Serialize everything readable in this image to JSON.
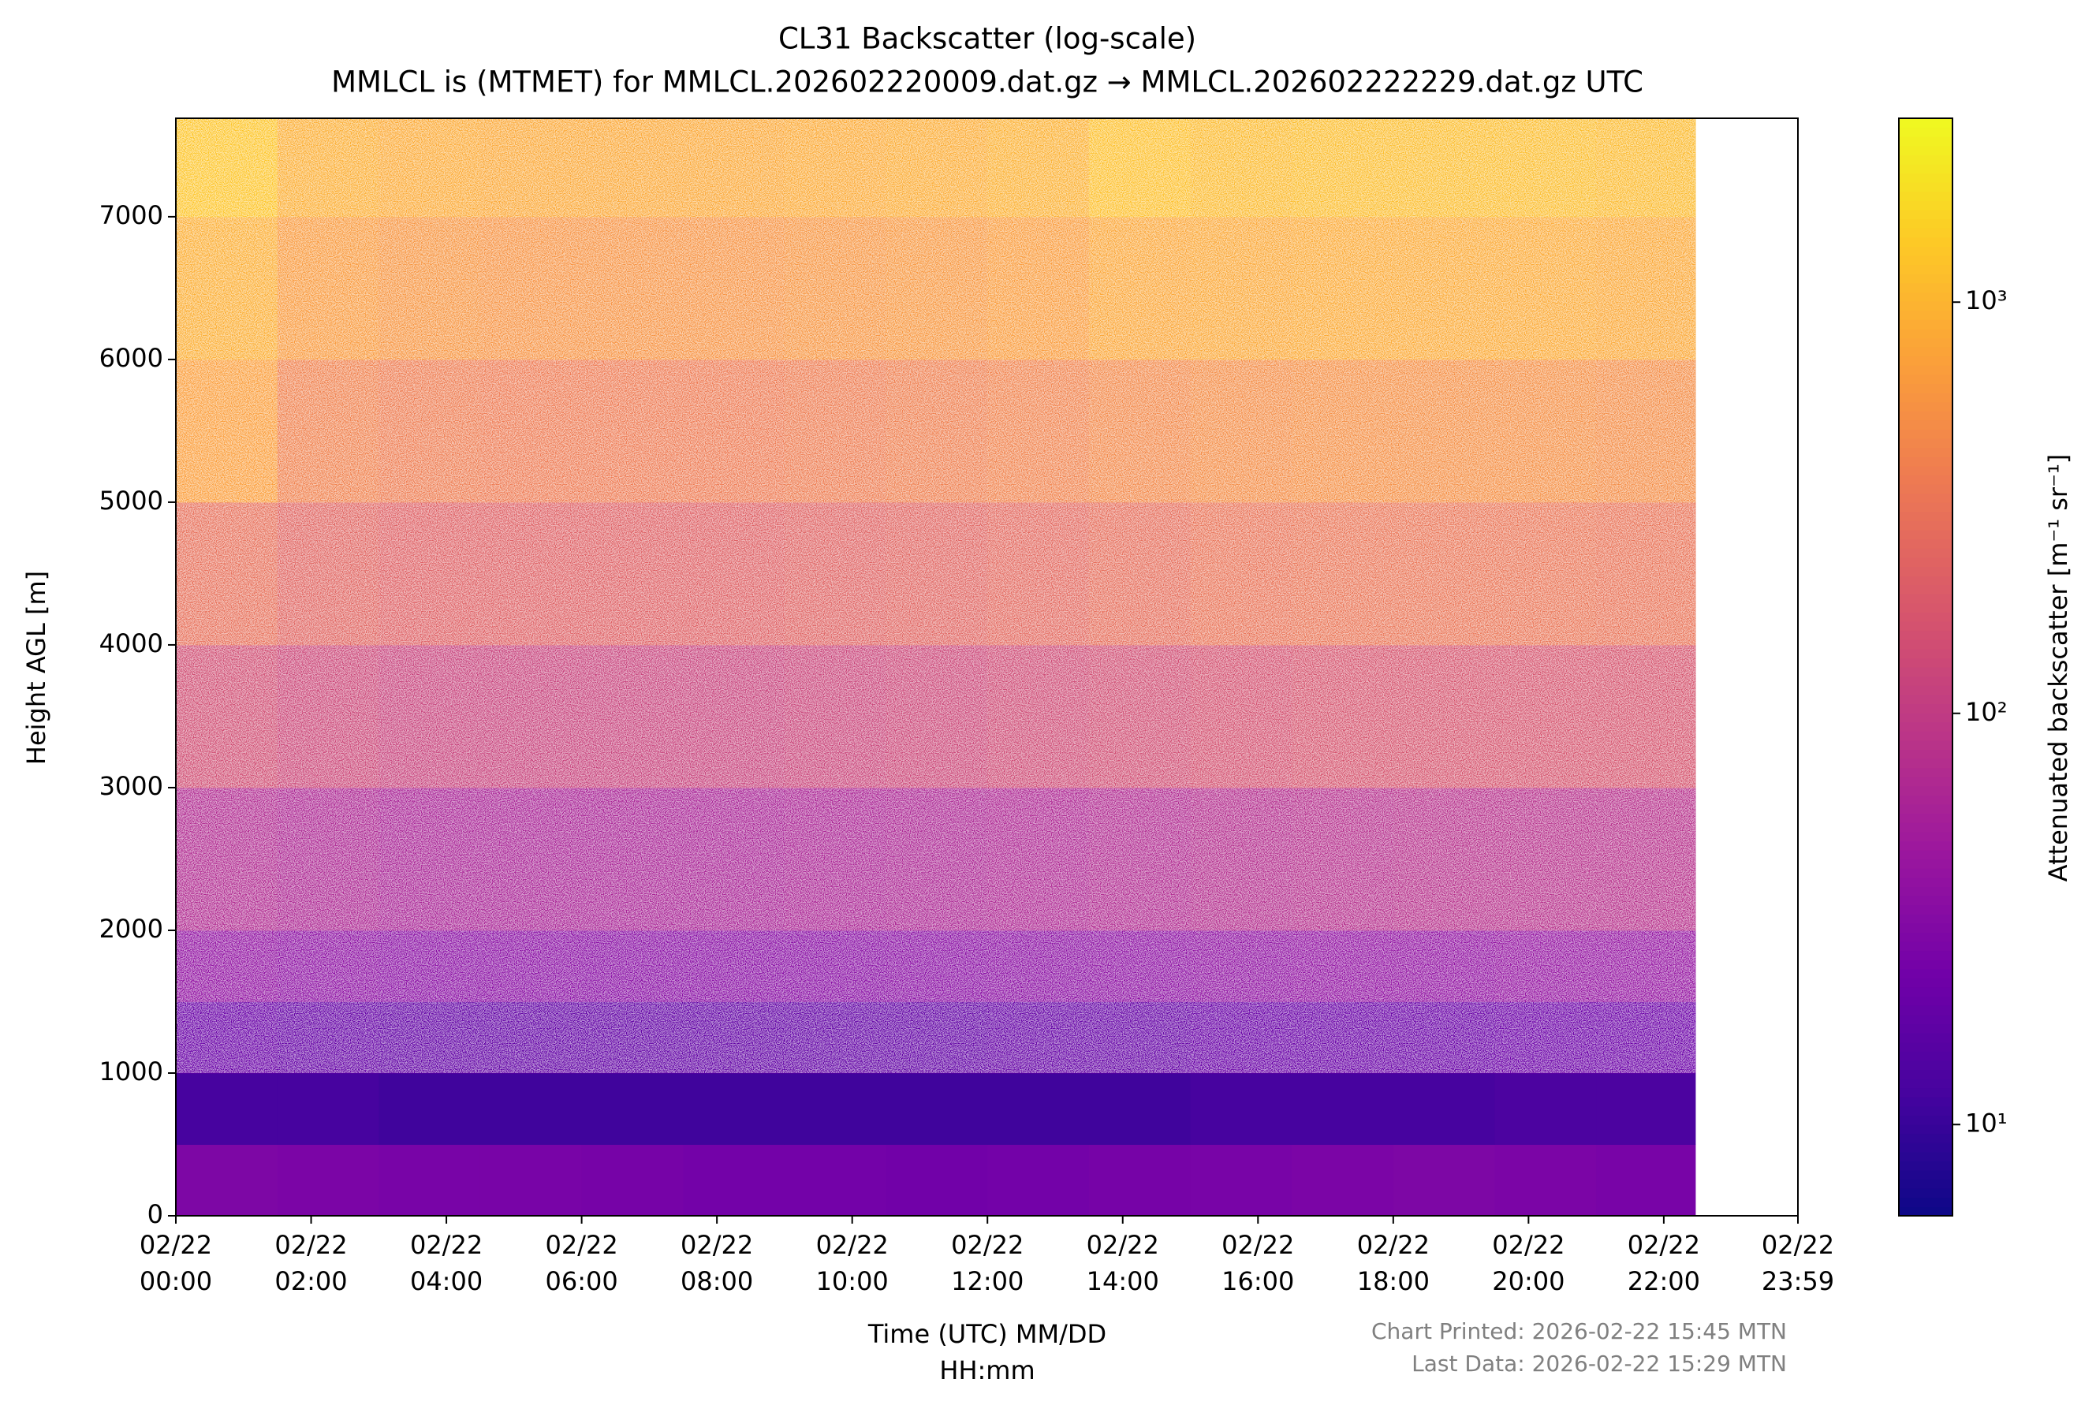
{
  "chart_data": {
    "type": "heatmap",
    "title": "CL31 Backscatter (log-scale)",
    "subtitle": "MMLCL is (MTMET) for MMLCL.202602220009.dat.gz → MMLCL.202602222229.dat.gz UTC",
    "x_label": "Time (UTC) MM/DD\nHH:mm",
    "y_label": "Height AGL [m]",
    "colorbar_label": "Attenuated backscatter [m⁻¹ sr⁻¹]",
    "notes": [
      "Chart Printed: 2026-02-22 15:45 MTN",
      "Last Data: 2026-02-22 15:29 MTN"
    ],
    "xlim": [
      0,
      1439
    ],
    "xticks": [
      {
        "value": 0,
        "label": "02/22\n00:00"
      },
      {
        "value": 120,
        "label": "02/22\n02:00"
      },
      {
        "value": 240,
        "label": "02/22\n04:00"
      },
      {
        "value": 360,
        "label": "02/22\n06:00"
      },
      {
        "value": 480,
        "label": "02/22\n08:00"
      },
      {
        "value": 600,
        "label": "02/22\n10:00"
      },
      {
        "value": 720,
        "label": "02/22\n12:00"
      },
      {
        "value": 840,
        "label": "02/22\n14:00"
      },
      {
        "value": 960,
        "label": "02/22\n16:00"
      },
      {
        "value": 1080,
        "label": "02/22\n18:00"
      },
      {
        "value": 1200,
        "label": "02/22\n20:00"
      },
      {
        "value": 1320,
        "label": "02/22\n22:00"
      },
      {
        "value": 1439,
        "label": "02/22\n23:59"
      }
    ],
    "ylim": [
      0,
      7690
    ],
    "yticks": [
      0,
      1000,
      2000,
      3000,
      4000,
      5000,
      6000,
      7000
    ],
    "clim": [
      6,
      2800
    ],
    "color_scale": "log",
    "cticks": [
      {
        "value": 10,
        "label": "10¹"
      },
      {
        "value": 100,
        "label": "10²"
      },
      {
        "value": 1000,
        "label": "10³"
      }
    ],
    "colormap": [
      "#0d0887",
      "#46039f",
      "#7201a8",
      "#9c179e",
      "#bd3786",
      "#d8576b",
      "#ed7953",
      "#fb9f3a",
      "#fdca26",
      "#f0f921"
    ],
    "xbins": [
      0,
      90,
      180,
      270,
      360,
      450,
      540,
      630,
      720,
      810,
      900,
      990,
      1080,
      1170,
      1260,
      1348
    ],
    "ybins": [
      0,
      500,
      1000,
      1500,
      2000,
      3000,
      4000,
      5000,
      6000,
      7000,
      7690
    ],
    "values": [
      [
        28,
        27,
        26,
        26,
        25,
        24,
        24,
        23,
        24,
        25,
        26,
        27,
        28,
        27,
        26
      ],
      [
        12,
        12,
        11,
        11,
        11,
        11,
        11,
        11,
        11,
        11,
        12,
        12,
        12,
        13,
        13
      ],
      [
        20,
        19,
        18,
        18,
        18,
        18,
        18,
        18,
        19,
        19,
        20,
        20,
        20,
        21,
        21
      ],
      [
        38,
        36,
        34,
        34,
        33,
        33,
        33,
        34,
        35,
        36,
        37,
        38,
        38,
        40,
        40
      ],
      [
        70,
        65,
        60,
        60,
        60,
        60,
        62,
        64,
        66,
        70,
        75,
        78,
        80,
        80,
        80
      ],
      [
        150,
        130,
        120,
        120,
        120,
        120,
        125,
        130,
        140,
        150,
        160,
        170,
        170,
        170,
        170
      ],
      [
        300,
        240,
        220,
        220,
        220,
        220,
        230,
        240,
        260,
        290,
        320,
        330,
        330,
        330,
        320
      ],
      [
        700,
        420,
        380,
        370,
        370,
        370,
        380,
        400,
        430,
        480,
        520,
        540,
        540,
        540,
        520
      ],
      [
        900,
        650,
        600,
        580,
        580,
        580,
        600,
        620,
        680,
        800,
        820,
        850,
        850,
        850,
        820
      ],
      [
        1300,
        900,
        850,
        820,
        820,
        820,
        850,
        880,
        950,
        1200,
        1100,
        1150,
        1150,
        1150,
        1100
      ]
    ]
  }
}
